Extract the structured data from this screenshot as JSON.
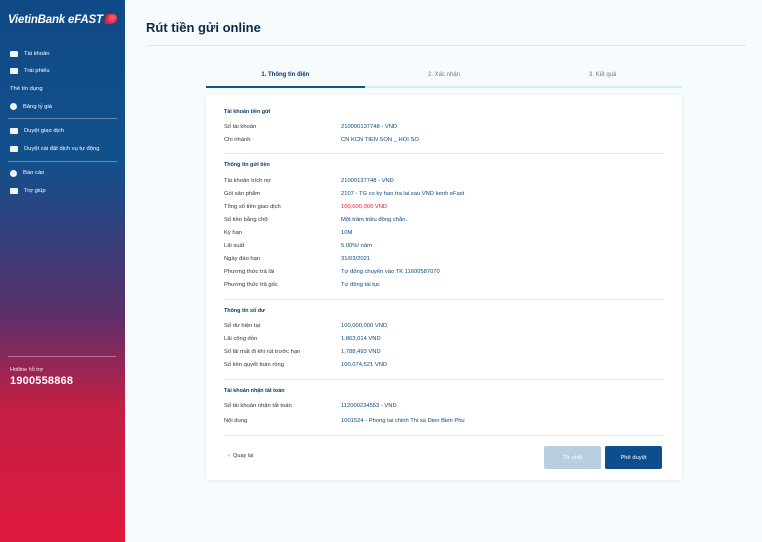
{
  "brand": {
    "name": "VietinBank eFAST"
  },
  "sidebar": {
    "items": [
      {
        "label": "Tài khoản"
      },
      {
        "label": "Trái phiếu"
      },
      {
        "label": "Thẻ tín dụng"
      },
      {
        "label": "Bảng tỷ giá"
      },
      {
        "label": "Duyệt giao dịch"
      },
      {
        "label": "Duyệt cài đặt dịch vụ tự động"
      },
      {
        "label": "Báo cáo"
      },
      {
        "label": "Trợ giúp"
      }
    ],
    "hotline_label": "Hotline hỗ trợ",
    "hotline_number": "1900558868"
  },
  "page": {
    "title": "Rút tiền gửi online"
  },
  "steps": [
    {
      "label": "1. Thông tin điện"
    },
    {
      "label": "2. Xác nhận"
    },
    {
      "label": "3. Kết quả"
    }
  ],
  "sections": {
    "source": {
      "title": "Tài khoản tiền gửi",
      "rows": [
        {
          "label": "Số tài khoản",
          "value": "210000137748 - VND"
        },
        {
          "label": "Chi nhánh",
          "value": "CN KCN TIEN SON _ HOI SO"
        }
      ]
    },
    "deposit": {
      "title": "Thông tin gửi tiền",
      "rows": [
        {
          "label": "Tài khoản trích nợ",
          "value": "21000137748 - VND"
        },
        {
          "label": "Gói sản phẩm",
          "value": "2107 - TG co ky han tra lai sau VND kenh eFast"
        },
        {
          "label": "Tổng số tiền giao dịch",
          "value": "100,000,000 VND"
        },
        {
          "label": "Số tiền bằng chữ",
          "value": "Một trăm triệu đồng chẵn."
        },
        {
          "label": "Kỳ hạn",
          "value": "10M"
        },
        {
          "label": "Lãi suất",
          "value": "5.00%/ năm"
        },
        {
          "label": "Ngày đáo hạn",
          "value": "31/03/2021"
        },
        {
          "label": "Phương thức trả lãi",
          "value": "Tự động chuyển vào TK 11600587070"
        },
        {
          "label": "Phương thức trả gốc",
          "value": "Tự động tái tục"
        }
      ]
    },
    "balance": {
      "title": "Thông tin số dư",
      "rows": [
        {
          "label": "Số dư hiện tại",
          "value": "100,000,000 VND"
        },
        {
          "label": "Lãi cộng dồn",
          "value": "1,863,014 VND"
        },
        {
          "label": "Số lãi mất đi khi rút trước hạn",
          "value": "1,788,493 VND"
        },
        {
          "label": "Số tiền quyết toán ròng",
          "value": "100,074,521 VND"
        }
      ]
    },
    "receiver": {
      "title": "Tài khoản nhận tất toán",
      "rows": [
        {
          "label": "Số tài khoản nhận tất toán",
          "value": "112000234553 - VND"
        },
        {
          "label": "Nội dung",
          "value": "1001524 - Phong tai chinh Thi xa Dien Bien Phu"
        }
      ]
    }
  },
  "actions": {
    "back_label": "Quay lại",
    "reject_label": "Từ chối",
    "approve_label": "Phê duyệt"
  },
  "colors": {
    "primary": "#0d4f8e",
    "accent_red": "#e0193d",
    "disabled_button": "#b9cfe0"
  }
}
